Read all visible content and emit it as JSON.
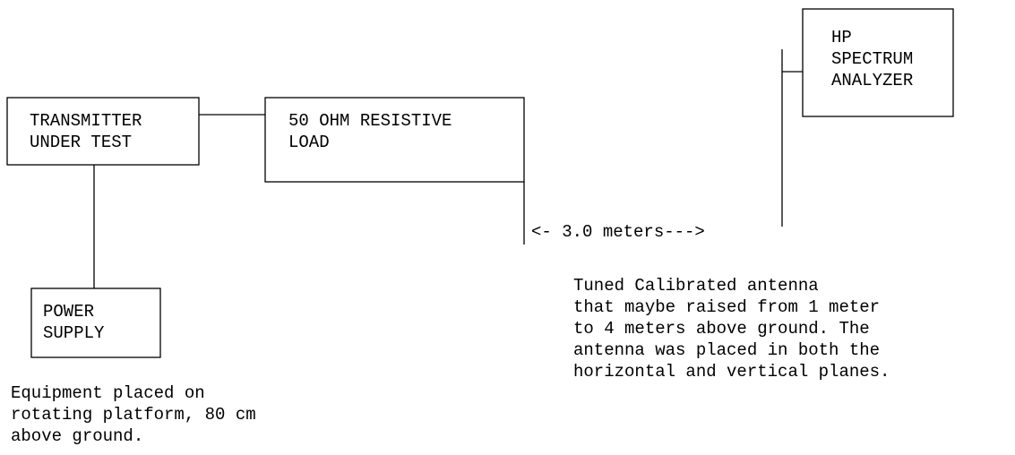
{
  "nodes": [
    {
      "label": [
        "TRANSMITTER",
        "UNDER TEST"
      ]
    },
    {
      "label": [
        "50 OHM RESISTIVE",
        "LOAD"
      ]
    },
    {
      "label": [
        "HP",
        "SPECTRUM",
        "ANALYZER"
      ]
    },
    {
      "label": [
        "POWER",
        "SUPPLY"
      ]
    }
  ],
  "distance": "<- 3.0 meters--->",
  "notes": [
    [
      "Equipment placed on",
      "rotating platform, 80 cm",
      "above ground."
    ],
    [
      "Tuned Calibrated antenna",
      "that maybe raised from 1 meter",
      "to 4 meters above ground. The",
      "antenna was placed in both the",
      "horizontal and vertical planes."
    ]
  ]
}
